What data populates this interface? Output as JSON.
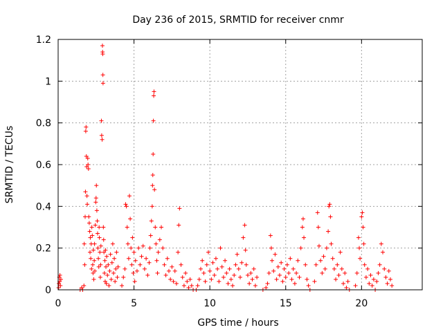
{
  "chart_data": {
    "type": "scatter",
    "title": "Day 236 of 2015, SRMTID for receiver cnmr",
    "xlabel": "GPS time / hours",
    "ylabel": "SRMTID / TECUs",
    "xlim": [
      0,
      24
    ],
    "ylim": [
      0,
      1.2
    ],
    "xticks": [
      0,
      5,
      10,
      15,
      20
    ],
    "yticks": [
      0,
      0.2,
      0.4,
      0.6,
      0.8,
      1,
      1.2
    ],
    "xtick_labels": [
      "0",
      "5",
      "10",
      "15",
      "20"
    ],
    "ytick_labels": [
      "0",
      "0.2",
      "0.4",
      "0.6",
      "0.8",
      "1",
      "1.2"
    ],
    "grid": true,
    "marker": "+",
    "marker_color": "#ff0000",
    "series": [
      {
        "name": "SRMTID",
        "points": [
          [
            0.03,
            0.01
          ],
          [
            0.05,
            0.03
          ],
          [
            0.08,
            0.06
          ],
          [
            0.1,
            0.04
          ],
          [
            0.12,
            0.07
          ],
          [
            0.15,
            0.02
          ],
          [
            0.18,
            0.05
          ],
          [
            1.45,
            0.0
          ],
          [
            1.55,
            0.01
          ],
          [
            1.62,
            0.0
          ],
          [
            1.7,
            0.02
          ],
          [
            1.72,
            0.22
          ],
          [
            1.75,
            0.12
          ],
          [
            1.78,
            0.35
          ],
          [
            1.8,
            0.47
          ],
          [
            1.82,
            0.76
          ],
          [
            1.84,
            0.78
          ],
          [
            1.86,
            0.64
          ],
          [
            1.88,
            0.59
          ],
          [
            1.9,
            0.45
          ],
          [
            1.92,
            0.41
          ],
          [
            1.95,
            0.63
          ],
          [
            1.97,
            0.6
          ],
          [
            2.0,
            0.58
          ],
          [
            2.02,
            0.35
          ],
          [
            2.05,
            0.32
          ],
          [
            2.08,
            0.28
          ],
          [
            2.1,
            0.18
          ],
          [
            2.12,
            0.25
          ],
          [
            2.15,
            0.15
          ],
          [
            2.18,
            0.22
          ],
          [
            2.2,
            0.1
          ],
          [
            2.22,
            0.3
          ],
          [
            2.25,
            0.26
          ],
          [
            2.28,
            0.12
          ],
          [
            2.3,
            0.08
          ],
          [
            2.32,
            0.19
          ],
          [
            2.35,
            0.05
          ],
          [
            2.38,
            0.14
          ],
          [
            2.4,
            0.22
          ],
          [
            2.42,
            0.09
          ],
          [
            2.45,
            0.31
          ],
          [
            2.48,
            0.42
          ],
          [
            2.5,
            0.44
          ],
          [
            2.52,
            0.5
          ],
          [
            2.55,
            0.38
          ],
          [
            2.58,
            0.33
          ],
          [
            2.6,
            0.27
          ],
          [
            2.62,
            0.2
          ],
          [
            2.65,
            0.15
          ],
          [
            2.68,
            0.11
          ],
          [
            2.7,
            0.3
          ],
          [
            2.72,
            0.25
          ],
          [
            2.75,
            0.18
          ],
          [
            2.78,
            0.06
          ],
          [
            2.8,
            0.12
          ],
          [
            2.82,
            0.21
          ],
          [
            2.85,
            0.81
          ],
          [
            2.87,
            0.74
          ],
          [
            2.9,
            0.72
          ],
          [
            2.92,
            1.17
          ],
          [
            2.93,
            1.14
          ],
          [
            2.94,
            1.13
          ],
          [
            2.95,
            1.03
          ],
          [
            2.96,
            0.99
          ],
          [
            2.98,
            0.3
          ],
          [
            3.0,
            0.24
          ],
          [
            3.02,
            0.18
          ],
          [
            3.05,
            0.08
          ],
          [
            3.08,
            0.14
          ],
          [
            3.1,
            0.04
          ],
          [
            3.12,
            0.19
          ],
          [
            3.15,
            0.11
          ],
          [
            3.18,
            0.03
          ],
          [
            3.2,
            0.16
          ],
          [
            3.25,
            0.07
          ],
          [
            3.3,
            0.12
          ],
          [
            3.35,
            0.02
          ],
          [
            3.4,
            0.09
          ],
          [
            3.45,
            0.17
          ],
          [
            3.5,
            0.05
          ],
          [
            3.55,
            0.13
          ],
          [
            3.6,
            0.22
          ],
          [
            3.65,
            0.08
          ],
          [
            3.7,
            0.15
          ],
          [
            3.75,
            0.04
          ],
          [
            3.8,
            0.1
          ],
          [
            3.85,
            0.18
          ],
          [
            3.9,
            0.06
          ],
          [
            3.95,
            0.11
          ],
          [
            4.2,
            0.02
          ],
          [
            4.3,
            0.06
          ],
          [
            4.4,
            0.1
          ],
          [
            4.45,
            0.41
          ],
          [
            4.5,
            0.4
          ],
          [
            4.55,
            0.3
          ],
          [
            4.6,
            0.22
          ],
          [
            4.65,
            0.15
          ],
          [
            4.7,
            0.45
          ],
          [
            4.75,
            0.34
          ],
          [
            4.8,
            0.2
          ],
          [
            4.85,
            0.12
          ],
          [
            4.9,
            0.25
          ],
          [
            4.95,
            0.08
          ],
          [
            5.0,
            0.18
          ],
          [
            5.05,
            0.04
          ],
          [
            5.1,
            0.14
          ],
          [
            5.2,
            0.09
          ],
          [
            5.3,
            0.2
          ],
          [
            5.4,
            0.12
          ],
          [
            5.5,
            0.16
          ],
          [
            5.6,
            0.21
          ],
          [
            5.7,
            0.1
          ],
          [
            5.8,
            0.15
          ],
          [
            5.9,
            0.07
          ],
          [
            6.0,
            0.13
          ],
          [
            6.05,
            0.2
          ],
          [
            6.1,
            0.26
          ],
          [
            6.15,
            0.33
          ],
          [
            6.2,
            0.4
          ],
          [
            6.22,
            0.5
          ],
          [
            6.24,
            0.55
          ],
          [
            6.26,
            0.65
          ],
          [
            6.28,
            0.81
          ],
          [
            6.3,
            0.93
          ],
          [
            6.32,
            0.95
          ],
          [
            6.35,
            0.48
          ],
          [
            6.4,
            0.3
          ],
          [
            6.45,
            0.22
          ],
          [
            6.5,
            0.14
          ],
          [
            6.55,
            0.08
          ],
          [
            6.6,
            0.18
          ],
          [
            6.7,
            0.24
          ],
          [
            6.8,
            0.3
          ],
          [
            6.9,
            0.2
          ],
          [
            7.0,
            0.12
          ],
          [
            7.1,
            0.07
          ],
          [
            7.2,
            0.15
          ],
          [
            7.3,
            0.09
          ],
          [
            7.4,
            0.05
          ],
          [
            7.5,
            0.11
          ],
          [
            7.6,
            0.04
          ],
          [
            7.7,
            0.09
          ],
          [
            7.8,
            0.03
          ],
          [
            7.9,
            0.18
          ],
          [
            7.95,
            0.31
          ],
          [
            8.0,
            0.39
          ],
          [
            8.1,
            0.12
          ],
          [
            8.2,
            0.06
          ],
          [
            8.3,
            0.02
          ],
          [
            8.4,
            0.08
          ],
          [
            8.5,
            0.04
          ],
          [
            8.6,
            0.01
          ],
          [
            8.7,
            0.05
          ],
          [
            8.8,
            0.02
          ],
          [
            8.9,
            0.0
          ],
          [
            9.1,
            0.0
          ],
          [
            9.2,
            0.02
          ],
          [
            9.3,
            0.05
          ],
          [
            9.4,
            0.1
          ],
          [
            9.5,
            0.14
          ],
          [
            9.6,
            0.08
          ],
          [
            9.7,
            0.04
          ],
          [
            9.8,
            0.12
          ],
          [
            9.9,
            0.18
          ],
          [
            10.0,
            0.09
          ],
          [
            10.1,
            0.05
          ],
          [
            10.2,
            0.13
          ],
          [
            10.3,
            0.07
          ],
          [
            10.4,
            0.15
          ],
          [
            10.5,
            0.1
          ],
          [
            10.6,
            0.04
          ],
          [
            10.7,
            0.2
          ],
          [
            10.8,
            0.11
          ],
          [
            10.9,
            0.06
          ],
          [
            11.0,
            0.14
          ],
          [
            11.1,
            0.08
          ],
          [
            11.2,
            0.03
          ],
          [
            11.3,
            0.1
          ],
          [
            11.4,
            0.05
          ],
          [
            11.5,
            0.02
          ],
          [
            11.6,
            0.07
          ],
          [
            11.7,
            0.12
          ],
          [
            11.8,
            0.17
          ],
          [
            11.9,
            0.1
          ],
          [
            12.0,
            0.06
          ],
          [
            12.1,
            0.13
          ],
          [
            12.2,
            0.25
          ],
          [
            12.3,
            0.31
          ],
          [
            12.35,
            0.19
          ],
          [
            12.4,
            0.12
          ],
          [
            12.5,
            0.07
          ],
          [
            12.6,
            0.03
          ],
          [
            12.7,
            0.08
          ],
          [
            12.8,
            0.05
          ],
          [
            12.9,
            0.1
          ],
          [
            13.0,
            0.02
          ],
          [
            13.1,
            0.06
          ],
          [
            13.5,
            0.0
          ],
          [
            13.7,
            0.01
          ],
          [
            13.8,
            0.03
          ],
          [
            13.9,
            0.08
          ],
          [
            14.0,
            0.26
          ],
          [
            14.05,
            0.2
          ],
          [
            14.1,
            0.14
          ],
          [
            14.2,
            0.09
          ],
          [
            14.3,
            0.17
          ],
          [
            14.4,
            0.05
          ],
          [
            14.5,
            0.11
          ],
          [
            14.6,
            0.07
          ],
          [
            14.7,
            0.13
          ],
          [
            14.8,
            0.04
          ],
          [
            14.9,
            0.1
          ],
          [
            15.0,
            0.06
          ],
          [
            15.1,
            0.12
          ],
          [
            15.2,
            0.08
          ],
          [
            15.3,
            0.15
          ],
          [
            15.4,
            0.05
          ],
          [
            15.5,
            0.1
          ],
          [
            15.6,
            0.03
          ],
          [
            15.7,
            0.08
          ],
          [
            15.8,
            0.14
          ],
          [
            15.9,
            0.06
          ],
          [
            16.0,
            0.2
          ],
          [
            16.1,
            0.3
          ],
          [
            16.15,
            0.34
          ],
          [
            16.2,
            0.25
          ],
          [
            16.3,
            0.12
          ],
          [
            16.4,
            0.05
          ],
          [
            16.5,
            0.02
          ],
          [
            16.6,
            0.0
          ],
          [
            16.9,
            0.04
          ],
          [
            17.0,
            0.12
          ],
          [
            17.1,
            0.37
          ],
          [
            17.15,
            0.3
          ],
          [
            17.2,
            0.21
          ],
          [
            17.3,
            0.14
          ],
          [
            17.4,
            0.08
          ],
          [
            17.5,
            0.16
          ],
          [
            17.6,
            0.1
          ],
          [
            17.7,
            0.2
          ],
          [
            17.8,
            0.28
          ],
          [
            17.85,
            0.4
          ],
          [
            17.9,
            0.41
          ],
          [
            17.95,
            0.35
          ],
          [
            18.0,
            0.22
          ],
          [
            18.1,
            0.15
          ],
          [
            18.2,
            0.1
          ],
          [
            18.3,
            0.05
          ],
          [
            18.4,
            0.12
          ],
          [
            18.5,
            0.07
          ],
          [
            18.6,
            0.18
          ],
          [
            18.7,
            0.1
          ],
          [
            18.8,
            0.03
          ],
          [
            18.9,
            0.08
          ],
          [
            19.0,
            0.01
          ],
          [
            19.1,
            0.04
          ],
          [
            19.2,
            0.0
          ],
          [
            19.6,
            0.02
          ],
          [
            19.7,
            0.08
          ],
          [
            19.8,
            0.25
          ],
          [
            19.85,
            0.2
          ],
          [
            19.9,
            0.15
          ],
          [
            20.0,
            0.35
          ],
          [
            20.05,
            0.37
          ],
          [
            20.1,
            0.3
          ],
          [
            20.15,
            0.22
          ],
          [
            20.2,
            0.12
          ],
          [
            20.3,
            0.06
          ],
          [
            20.4,
            0.1
          ],
          [
            20.5,
            0.03
          ],
          [
            20.6,
            0.07
          ],
          [
            20.7,
            0.02
          ],
          [
            20.8,
            0.05
          ],
          [
            20.9,
            0.0
          ],
          [
            21.0,
            0.04
          ],
          [
            21.1,
            0.08
          ],
          [
            21.2,
            0.12
          ],
          [
            21.3,
            0.22
          ],
          [
            21.4,
            0.18
          ],
          [
            21.5,
            0.1
          ],
          [
            21.6,
            0.06
          ],
          [
            21.7,
            0.03
          ],
          [
            21.8,
            0.09
          ],
          [
            21.9,
            0.05
          ],
          [
            22.0,
            0.02
          ]
        ]
      }
    ]
  }
}
